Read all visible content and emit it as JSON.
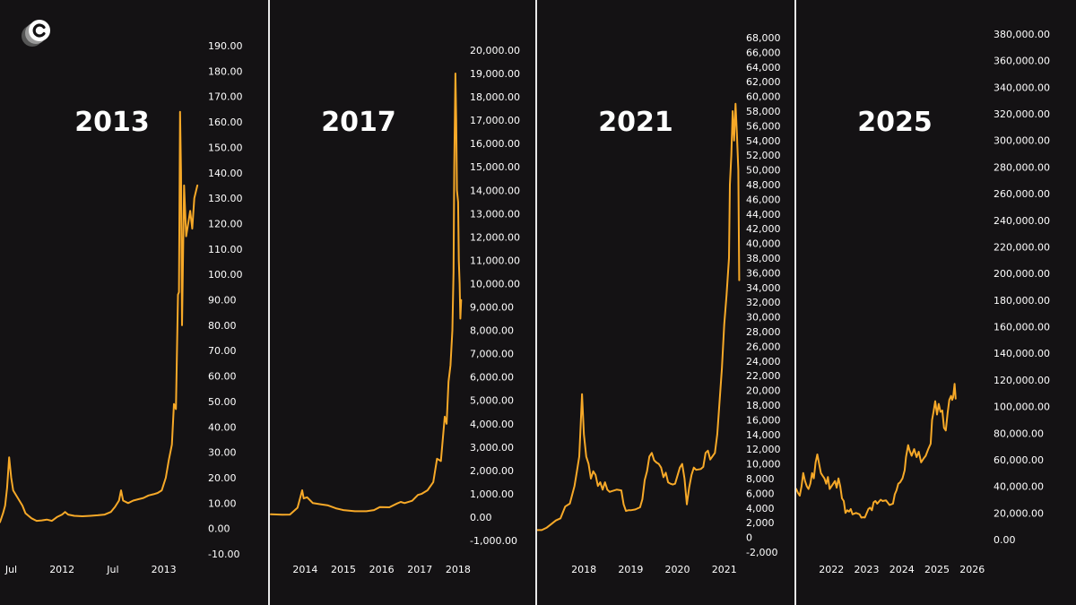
{
  "colors": {
    "background": "#141214",
    "line": "#f7a928",
    "text": "#ffffff",
    "divider": "#e8e8e8"
  },
  "logo": {
    "icon": "c-circle-logo-icon"
  },
  "chart_data": [
    {
      "type": "line",
      "title": "2013",
      "y_ticks": [
        "190.00",
        "180.00",
        "170.00",
        "160.00",
        "150.00",
        "140.00",
        "130.00",
        "120.00",
        "110.00",
        "100.00",
        "90.00",
        "80.00",
        "70.00",
        "60.00",
        "50.00",
        "40.00",
        "30.00",
        "20.00",
        "10.00",
        "0.00",
        "-10.00"
      ],
      "x_ticks": [
        "Jul",
        "2012",
        "Jul",
        "2013"
      ],
      "ylim": [
        -10,
        190
      ],
      "xlim": [
        2011.39,
        2013.4
      ],
      "x_tick_values": [
        2011.5,
        2012.0,
        2012.5,
        2013.0
      ],
      "points": [
        [
          2011.39,
          2.5
        ],
        [
          2011.42,
          6
        ],
        [
          2011.44,
          9
        ],
        [
          2011.46,
          16
        ],
        [
          2011.48,
          28
        ],
        [
          2011.5,
          20
        ],
        [
          2011.52,
          15
        ],
        [
          2011.55,
          13
        ],
        [
          2011.58,
          11
        ],
        [
          2011.61,
          9
        ],
        [
          2011.64,
          6
        ],
        [
          2011.67,
          5
        ],
        [
          2011.7,
          4
        ],
        [
          2011.75,
          3
        ],
        [
          2011.8,
          3.2
        ],
        [
          2011.85,
          3.5
        ],
        [
          2011.9,
          3
        ],
        [
          2011.95,
          4.5
        ],
        [
          2012.0,
          5.5
        ],
        [
          2012.03,
          6.5
        ],
        [
          2012.06,
          5.5
        ],
        [
          2012.12,
          5
        ],
        [
          2012.2,
          4.8
        ],
        [
          2012.28,
          5
        ],
        [
          2012.35,
          5.2
        ],
        [
          2012.42,
          5.5
        ],
        [
          2012.48,
          6.5
        ],
        [
          2012.52,
          8.5
        ],
        [
          2012.56,
          11
        ],
        [
          2012.58,
          15
        ],
        [
          2012.6,
          11
        ],
        [
          2012.65,
          10
        ],
        [
          2012.7,
          11
        ],
        [
          2012.75,
          11.5
        ],
        [
          2012.8,
          12
        ],
        [
          2012.85,
          13
        ],
        [
          2012.9,
          13.5
        ],
        [
          2012.94,
          14
        ],
        [
          2012.98,
          15
        ],
        [
          2013.02,
          20
        ],
        [
          2013.05,
          27
        ],
        [
          2013.08,
          33
        ],
        [
          2013.1,
          49
        ],
        [
          2013.12,
          47
        ],
        [
          2013.14,
          92
        ],
        [
          2013.15,
          93
        ],
        [
          2013.16,
          164
        ],
        [
          2013.17,
          140
        ],
        [
          2013.18,
          80
        ],
        [
          2013.2,
          135
        ],
        [
          2013.22,
          115
        ],
        [
          2013.24,
          120
        ],
        [
          2013.26,
          125
        ],
        [
          2013.28,
          118
        ],
        [
          2013.3,
          130
        ],
        [
          2013.33,
          135
        ]
      ]
    },
    {
      "type": "line",
      "title": "2017",
      "y_ticks": [
        "20,000.00",
        "19,000.00",
        "18,000.00",
        "17,000.00",
        "16,000.00",
        "15,000.00",
        "14,000.00",
        "13,000.00",
        "12,000.00",
        "11,000.00",
        "10,000.00",
        "9,000.00",
        "8,000.00",
        "7,000.00",
        "6,000.00",
        "5,000.00",
        "4,000.00",
        "3,000.00",
        "2,000.00",
        "1,000.00",
        "0.00",
        "-1,000.00"
      ],
      "x_ticks": [
        "2014",
        "2015",
        "2016",
        "2017",
        "2018"
      ],
      "ylim": [
        -1000,
        20000
      ],
      "xlim": [
        2013.1,
        2018.12
      ],
      "x_tick_values": [
        2014,
        2015,
        2016,
        2017,
        2018
      ],
      "points": [
        [
          2013.1,
          120
        ],
        [
          2013.4,
          100
        ],
        [
          2013.6,
          110
        ],
        [
          2013.8,
          400
        ],
        [
          2013.88,
          900
        ],
        [
          2013.92,
          1150
        ],
        [
          2013.96,
          800
        ],
        [
          2014.05,
          850
        ],
        [
          2014.2,
          600
        ],
        [
          2014.4,
          550
        ],
        [
          2014.6,
          500
        ],
        [
          2014.8,
          380
        ],
        [
          2015.0,
          300
        ],
        [
          2015.3,
          250
        ],
        [
          2015.6,
          250
        ],
        [
          2015.8,
          300
        ],
        [
          2015.95,
          430
        ],
        [
          2016.2,
          420
        ],
        [
          2016.4,
          580
        ],
        [
          2016.5,
          650
        ],
        [
          2016.6,
          600
        ],
        [
          2016.8,
          700
        ],
        [
          2016.95,
          950
        ],
        [
          2017.05,
          1000
        ],
        [
          2017.2,
          1150
        ],
        [
          2017.35,
          1500
        ],
        [
          2017.45,
          2500
        ],
        [
          2017.55,
          2400
        ],
        [
          2017.65,
          4300
        ],
        [
          2017.7,
          4000
        ],
        [
          2017.75,
          5800
        ],
        [
          2017.8,
          6500
        ],
        [
          2017.85,
          8000
        ],
        [
          2017.88,
          10500
        ],
        [
          2017.9,
          15000
        ],
        [
          2017.93,
          19000
        ],
        [
          2017.95,
          17000
        ],
        [
          2017.97,
          14000
        ],
        [
          2018.0,
          13500
        ],
        [
          2018.02,
          11000
        ],
        [
          2018.04,
          10000
        ],
        [
          2018.06,
          8500
        ],
        [
          2018.08,
          9300
        ]
      ]
    },
    {
      "type": "line",
      "title": "2021",
      "y_ticks": [
        "68,000",
        "66,000",
        "64,000",
        "62,000",
        "60,000",
        "58,000",
        "56,000",
        "54,000",
        "52,000",
        "50,000",
        "48,000",
        "46,000",
        "44,000",
        "42,000",
        "40,000",
        "38,000",
        "36,000",
        "34,000",
        "32,000",
        "30,000",
        "28,000",
        "26,000",
        "24,000",
        "22,000",
        "20,000",
        "18,000",
        "16,000",
        "14,000",
        "12,000",
        "10,000",
        "8,000",
        "6,000",
        "4,000",
        "2,000",
        "0",
        "-2,000"
      ],
      "x_ticks": [
        "2018",
        "2019",
        "2020",
        "2021"
      ],
      "ylim": [
        -2000,
        68000
      ],
      "xlim": [
        2017.0,
        2021.35
      ],
      "x_tick_values": [
        2018,
        2019,
        2020,
        2021
      ],
      "points": [
        [
          2017.0,
          1000
        ],
        [
          2017.1,
          1000
        ],
        [
          2017.2,
          1300
        ],
        [
          2017.3,
          1800
        ],
        [
          2017.4,
          2300
        ],
        [
          2017.5,
          2600
        ],
        [
          2017.6,
          4200
        ],
        [
          2017.7,
          4600
        ],
        [
          2017.8,
          7000
        ],
        [
          2017.85,
          9000
        ],
        [
          2017.9,
          11000
        ],
        [
          2017.93,
          15000
        ],
        [
          2017.96,
          19500
        ],
        [
          2018.0,
          14000
        ],
        [
          2018.05,
          11000
        ],
        [
          2018.1,
          10000
        ],
        [
          2018.15,
          8000
        ],
        [
          2018.2,
          9000
        ],
        [
          2018.25,
          8500
        ],
        [
          2018.3,
          7000
        ],
        [
          2018.35,
          7500
        ],
        [
          2018.4,
          6500
        ],
        [
          2018.45,
          7500
        ],
        [
          2018.5,
          6500
        ],
        [
          2018.55,
          6200
        ],
        [
          2018.6,
          6300
        ],
        [
          2018.7,
          6500
        ],
        [
          2018.8,
          6400
        ],
        [
          2018.85,
          4500
        ],
        [
          2018.9,
          3600
        ],
        [
          2018.95,
          3700
        ],
        [
          2019.0,
          3700
        ],
        [
          2019.1,
          3800
        ],
        [
          2019.2,
          4100
        ],
        [
          2019.25,
          5200
        ],
        [
          2019.3,
          7800
        ],
        [
          2019.35,
          9000
        ],
        [
          2019.4,
          11000
        ],
        [
          2019.45,
          11500
        ],
        [
          2019.5,
          10500
        ],
        [
          2019.55,
          10200
        ],
        [
          2019.6,
          10000
        ],
        [
          2019.65,
          9500
        ],
        [
          2019.7,
          8200
        ],
        [
          2019.75,
          8800
        ],
        [
          2019.8,
          7500
        ],
        [
          2019.85,
          7300
        ],
        [
          2019.9,
          7200
        ],
        [
          2019.95,
          7300
        ],
        [
          2020.05,
          9500
        ],
        [
          2020.1,
          10000
        ],
        [
          2020.15,
          8000
        ],
        [
          2020.2,
          4500
        ],
        [
          2020.25,
          6800
        ],
        [
          2020.3,
          8500
        ],
        [
          2020.35,
          9500
        ],
        [
          2020.4,
          9200
        ],
        [
          2020.5,
          9300
        ],
        [
          2020.55,
          9600
        ],
        [
          2020.6,
          11500
        ],
        [
          2020.65,
          11800
        ],
        [
          2020.7,
          10600
        ],
        [
          2020.8,
          11500
        ],
        [
          2020.85,
          14000
        ],
        [
          2020.9,
          18500
        ],
        [
          2020.95,
          23000
        ],
        [
          2021.0,
          29000
        ],
        [
          2021.05,
          33000
        ],
        [
          2021.1,
          38000
        ],
        [
          2021.12,
          48000
        ],
        [
          2021.15,
          52000
        ],
        [
          2021.18,
          58000
        ],
        [
          2021.21,
          54000
        ],
        [
          2021.24,
          59000
        ],
        [
          2021.27,
          55000
        ],
        [
          2021.3,
          50000
        ],
        [
          2021.32,
          35000
        ]
      ]
    },
    {
      "type": "line",
      "title": "2025",
      "y_ticks": [
        "380,000.00",
        "360,000.00",
        "340,000.00",
        "320,000.00",
        "300,000.00",
        "280,000.00",
        "260,000.00",
        "240,000.00",
        "220,000.00",
        "200,000.00",
        "180,000.00",
        "160,000.00",
        "140,000.00",
        "120,000.00",
        "100,000.00",
        "80,000.00",
        "60,000.00",
        "40,000.00",
        "20,000.00",
        "0.00"
      ],
      "x_ticks": [
        "2022",
        "2023",
        "2024",
        "2025",
        "2026"
      ],
      "ylim": [
        0,
        380000
      ],
      "xlim": [
        2021.0,
        2026.3
      ],
      "x_tick_values": [
        2022,
        2023,
        2024,
        2025,
        2026
      ],
      "points": [
        [
          2021.0,
          38000
        ],
        [
          2021.05,
          35000
        ],
        [
          2021.1,
          33000
        ],
        [
          2021.15,
          40000
        ],
        [
          2021.2,
          50000
        ],
        [
          2021.25,
          44000
        ],
        [
          2021.3,
          40000
        ],
        [
          2021.35,
          38000
        ],
        [
          2021.4,
          42000
        ],
        [
          2021.45,
          50000
        ],
        [
          2021.5,
          46000
        ],
        [
          2021.55,
          58000
        ],
        [
          2021.6,
          64000
        ],
        [
          2021.65,
          57000
        ],
        [
          2021.7,
          50000
        ],
        [
          2021.75,
          48000
        ],
        [
          2021.8,
          46000
        ],
        [
          2021.85,
          42000
        ],
        [
          2021.9,
          47000
        ],
        [
          2021.95,
          38000
        ],
        [
          2022.05,
          42000
        ],
        [
          2022.1,
          44000
        ],
        [
          2022.15,
          39000
        ],
        [
          2022.2,
          46000
        ],
        [
          2022.25,
          40000
        ],
        [
          2022.3,
          31000
        ],
        [
          2022.35,
          29000
        ],
        [
          2022.4,
          20000
        ],
        [
          2022.45,
          22000
        ],
        [
          2022.5,
          21000
        ],
        [
          2022.55,
          23000
        ],
        [
          2022.6,
          19000
        ],
        [
          2022.7,
          20000
        ],
        [
          2022.8,
          19000
        ],
        [
          2022.85,
          16500
        ],
        [
          2022.9,
          16800
        ],
        [
          2022.95,
          16600
        ],
        [
          2023.05,
          23000
        ],
        [
          2023.1,
          24000
        ],
        [
          2023.15,
          22000
        ],
        [
          2023.2,
          28000
        ],
        [
          2023.25,
          29000
        ],
        [
          2023.3,
          27000
        ],
        [
          2023.4,
          30000
        ],
        [
          2023.45,
          29000
        ],
        [
          2023.55,
          29500
        ],
        [
          2023.65,
          26000
        ],
        [
          2023.75,
          27000
        ],
        [
          2023.8,
          34000
        ],
        [
          2023.85,
          37000
        ],
        [
          2023.9,
          42000
        ],
        [
          2023.95,
          43000
        ],
        [
          2024.02,
          46000
        ],
        [
          2024.08,
          52000
        ],
        [
          2024.12,
          62000
        ],
        [
          2024.18,
          71000
        ],
        [
          2024.22,
          67000
        ],
        [
          2024.28,
          63000
        ],
        [
          2024.35,
          68000
        ],
        [
          2024.42,
          62000
        ],
        [
          2024.48,
          66000
        ],
        [
          2024.55,
          58000
        ],
        [
          2024.62,
          61000
        ],
        [
          2024.68,
          63000
        ],
        [
          2024.75,
          68000
        ],
        [
          2024.82,
          72000
        ],
        [
          2024.86,
          90000
        ],
        [
          2024.9,
          96000
        ],
        [
          2024.95,
          104000
        ],
        [
          2025.0,
          94000
        ],
        [
          2025.05,
          102000
        ],
        [
          2025.1,
          96000
        ],
        [
          2025.15,
          97000
        ],
        [
          2025.2,
          84000
        ],
        [
          2025.25,
          82000
        ],
        [
          2025.3,
          95000
        ],
        [
          2025.35,
          105000
        ],
        [
          2025.4,
          108000
        ],
        [
          2025.43,
          105000
        ],
        [
          2025.46,
          107000
        ],
        [
          2025.5,
          117000
        ],
        [
          2025.53,
          106000
        ]
      ]
    }
  ]
}
